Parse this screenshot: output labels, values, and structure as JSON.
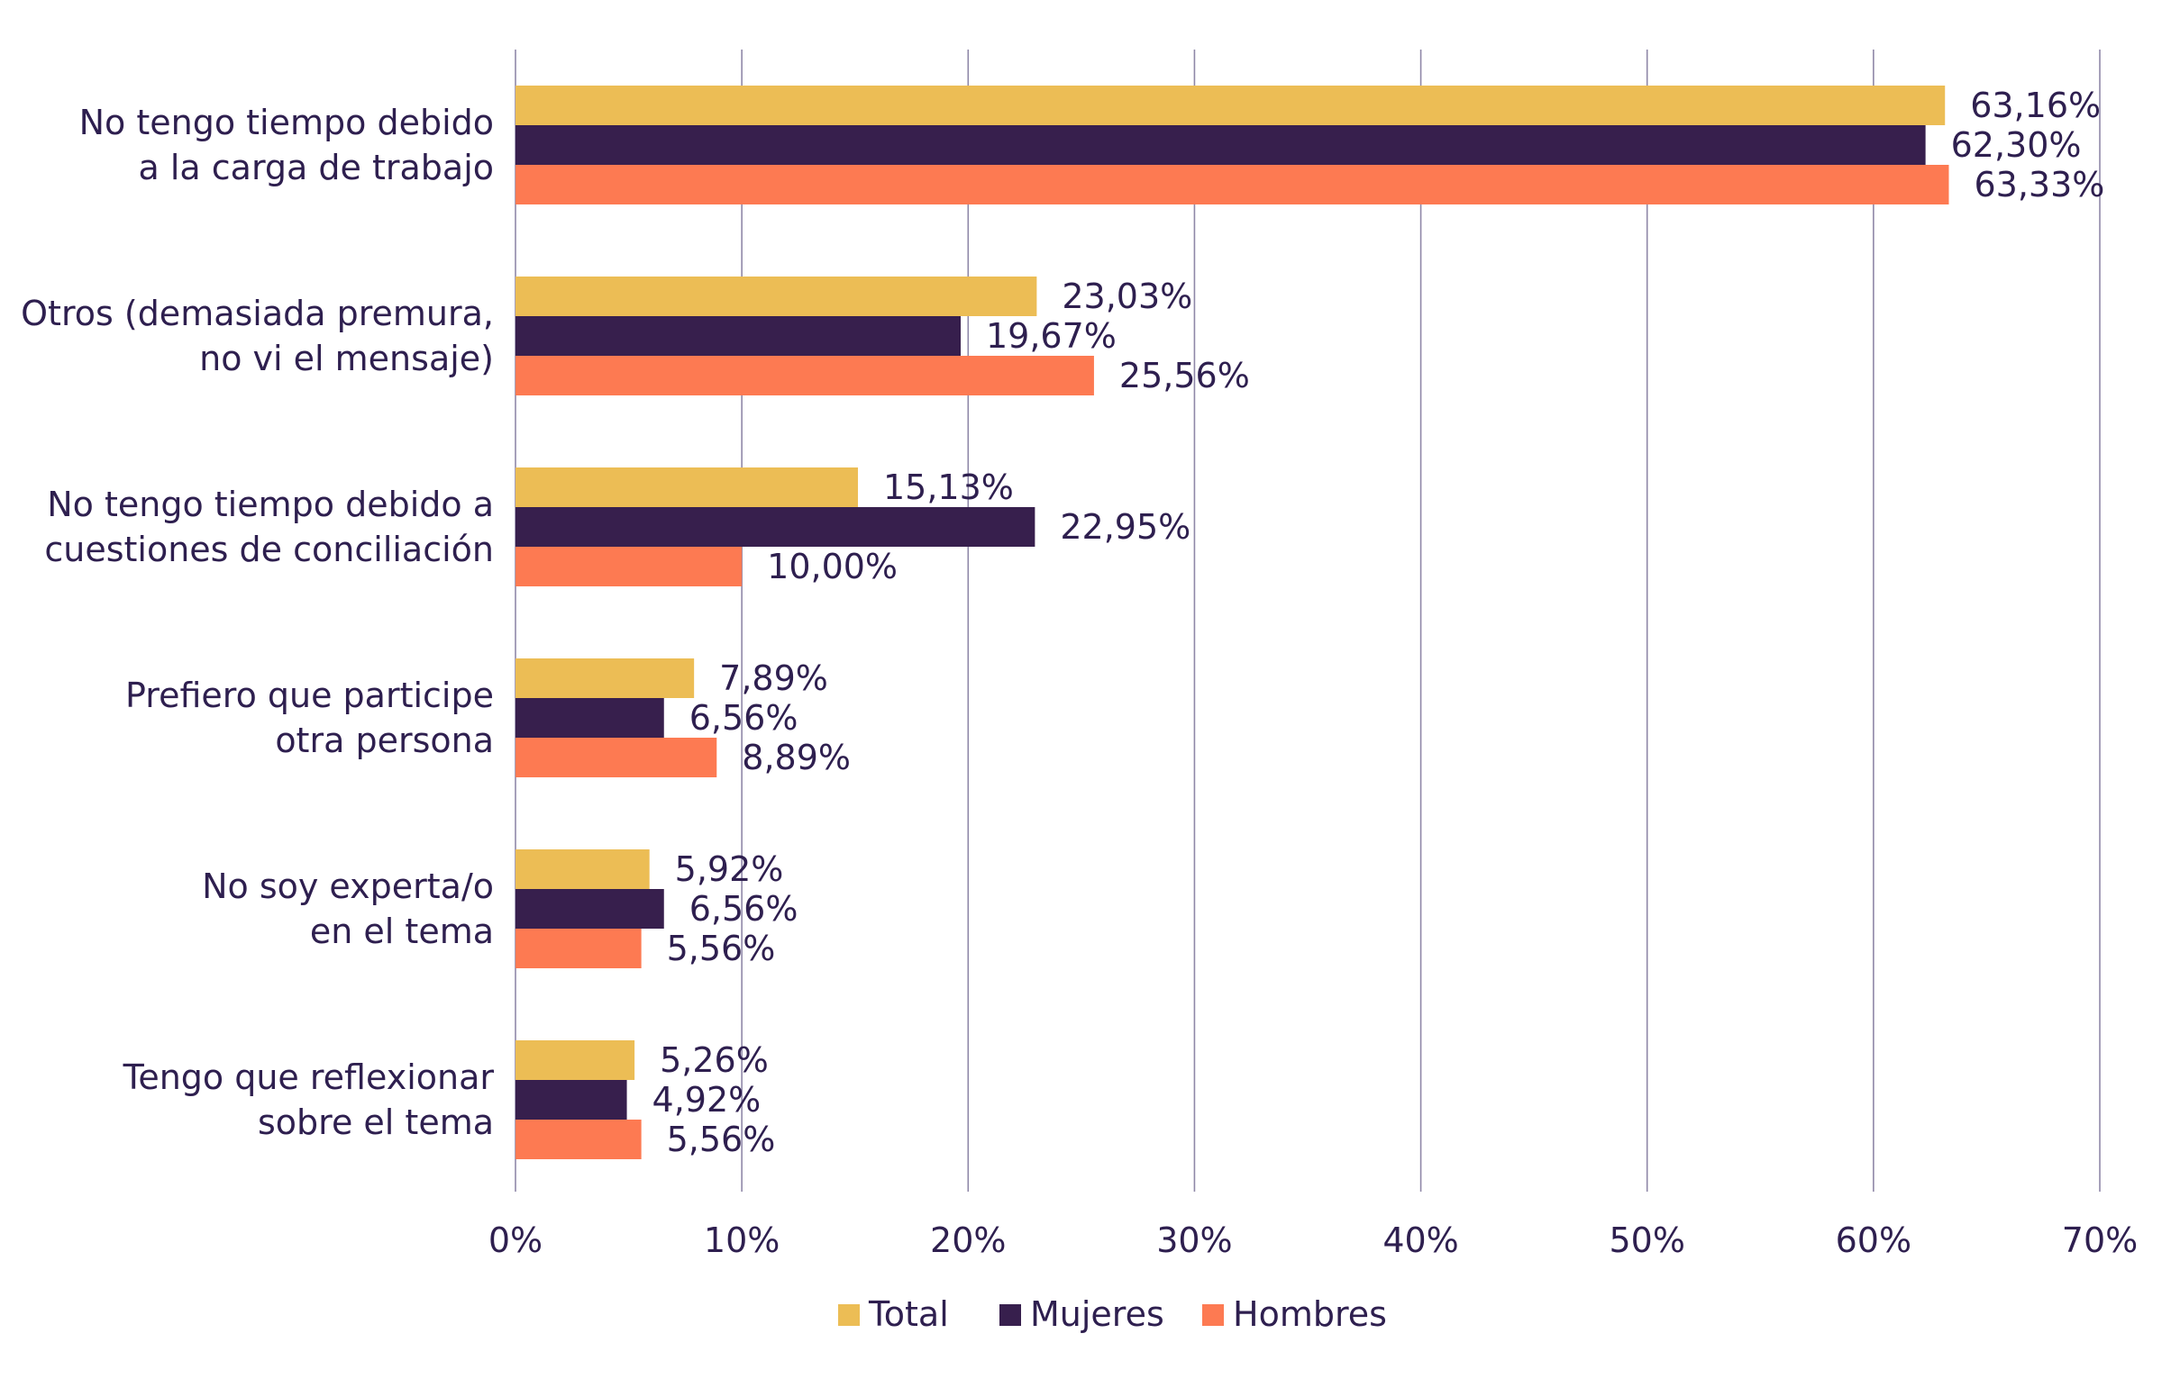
{
  "chart_data": {
    "type": "bar",
    "orientation": "horizontal",
    "categories": [
      [
        "No tengo tiempo debido",
        "a la carga de trabajo"
      ],
      [
        "Otros (demasiada premura,",
        "no vi el mensaje)"
      ],
      [
        "No tengo tiempo debido a",
        "cuestiones de conciliación"
      ],
      [
        "Prefiero que participe",
        "otra persona"
      ],
      [
        "No soy experta/o",
        "en el tema"
      ],
      [
        "Tengo que reflexionar",
        "sobre el tema"
      ]
    ],
    "series": [
      {
        "name": "Total",
        "color": "#ecbd55",
        "values": [
          63.16,
          23.03,
          15.13,
          7.89,
          5.92,
          5.26
        ],
        "labels": [
          "63,16%",
          "23,03%",
          "15,13%",
          "7,89%",
          "5,92%",
          "5,26%"
        ]
      },
      {
        "name": "Mujeres",
        "color": "#371f4d",
        "values": [
          62.3,
          19.67,
          22.95,
          6.56,
          6.56,
          4.92
        ],
        "labels": [
          "62,30%",
          "19,67%",
          "22,95%",
          "6,56%",
          "6,56%",
          "4,92%"
        ]
      },
      {
        "name": "Hombres",
        "color": "#fd7a52",
        "values": [
          63.33,
          25.56,
          10.0,
          8.89,
          5.56,
          5.56
        ],
        "labels": [
          "63,33%",
          "25,56%",
          "10,00%",
          "8,89%",
          "5,56%",
          "5,56%"
        ]
      }
    ],
    "xlim": [
      0,
      70
    ],
    "xticks": [
      0,
      10,
      20,
      30,
      40,
      50,
      60,
      70
    ],
    "xtick_labels": [
      "0%",
      "10%",
      "20%",
      "30%",
      "40%",
      "50%",
      "60%",
      "70%"
    ],
    "grid": true,
    "gridline_color": "#8f88a8",
    "legend_position": "bottom",
    "text_color": "#2e1f4f"
  }
}
